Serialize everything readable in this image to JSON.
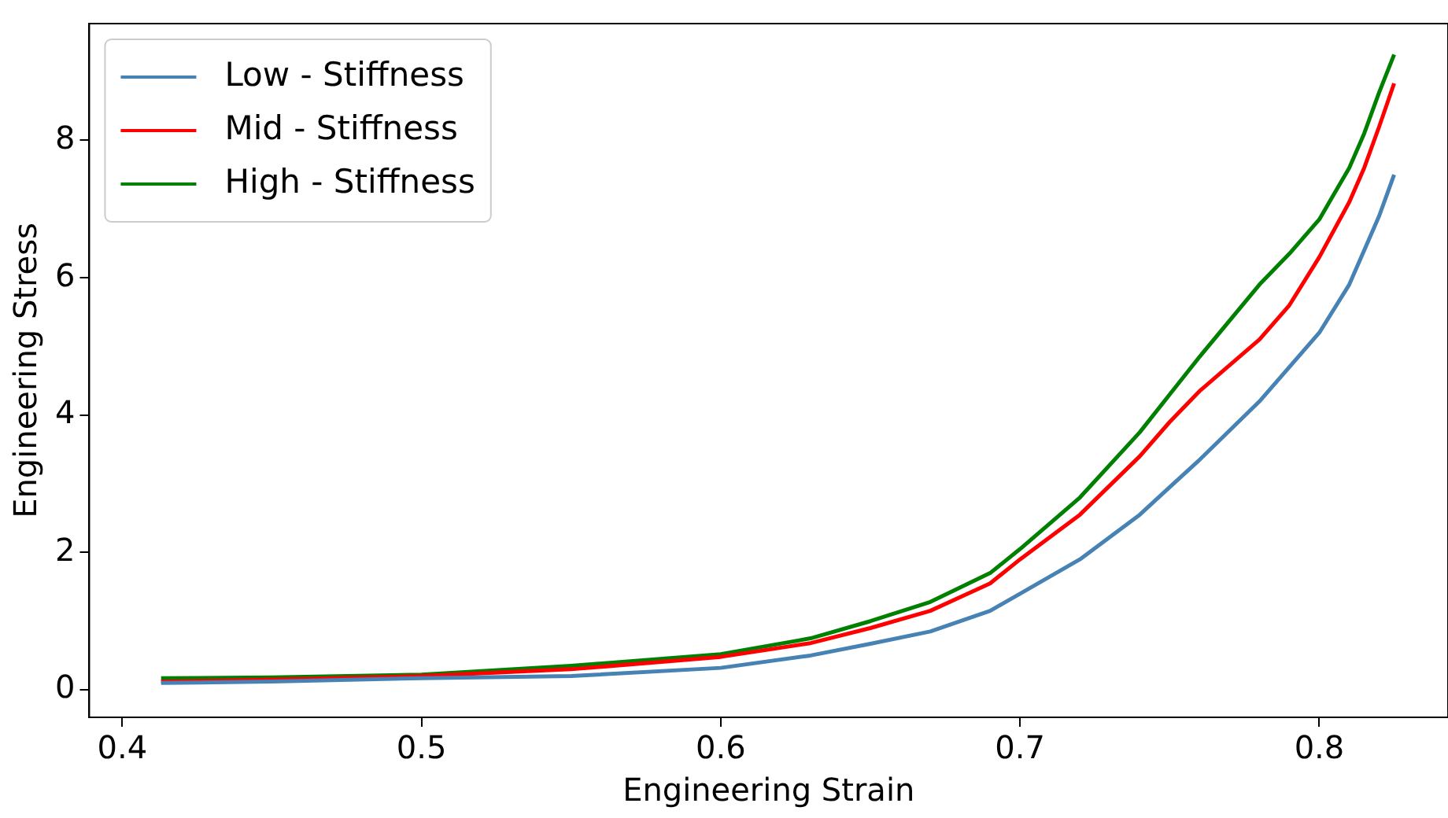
{
  "chart_data": {
    "type": "line",
    "xlabel": "Engineering Strain",
    "ylabel": "Engineering Stress",
    "xlim": [
      0.389,
      0.843
    ],
    "xticks": [
      0.4,
      0.5,
      0.6,
      0.7,
      0.8
    ],
    "ylim": [
      -0.4,
      9.7
    ],
    "yticks": [
      0,
      2,
      4,
      6,
      8
    ],
    "grid": false,
    "legend": "top left",
    "marker": "none",
    "line_style": "solid",
    "series": [
      {
        "name": "Low - Stiffness",
        "color": "#4682b4",
        "x": [
          0.413,
          0.45,
          0.5,
          0.55,
          0.6,
          0.63,
          0.65,
          0.67,
          0.69,
          0.7,
          0.72,
          0.74,
          0.75,
          0.76,
          0.78,
          0.79,
          0.8,
          0.81,
          0.815,
          0.82,
          0.825
        ],
        "values": [
          0.1,
          0.12,
          0.17,
          0.2,
          0.32,
          0.5,
          0.67,
          0.85,
          1.15,
          1.4,
          1.9,
          2.55,
          2.95,
          3.35,
          4.2,
          4.7,
          5.2,
          5.9,
          6.4,
          6.9,
          7.5
        ]
      },
      {
        "name": "Mid - Stiffness",
        "color": "#ff0000",
        "x": [
          0.413,
          0.45,
          0.5,
          0.55,
          0.6,
          0.63,
          0.65,
          0.67,
          0.69,
          0.7,
          0.72,
          0.74,
          0.75,
          0.76,
          0.78,
          0.79,
          0.8,
          0.81,
          0.815,
          0.82,
          0.825
        ],
        "values": [
          0.12,
          0.15,
          0.2,
          0.3,
          0.48,
          0.68,
          0.9,
          1.15,
          1.55,
          1.9,
          2.55,
          3.4,
          3.9,
          4.35,
          5.1,
          5.6,
          6.3,
          7.1,
          7.6,
          8.2,
          8.83
        ]
      },
      {
        "name": "High - Stiffness",
        "color": "#008000",
        "x": [
          0.413,
          0.45,
          0.5,
          0.55,
          0.6,
          0.63,
          0.65,
          0.67,
          0.69,
          0.7,
          0.72,
          0.74,
          0.75,
          0.76,
          0.78,
          0.79,
          0.8,
          0.81,
          0.815,
          0.82,
          0.825
        ],
        "values": [
          0.17,
          0.18,
          0.22,
          0.35,
          0.52,
          0.75,
          1.0,
          1.28,
          1.7,
          2.05,
          2.8,
          3.75,
          4.3,
          4.85,
          5.9,
          6.35,
          6.85,
          7.6,
          8.1,
          8.7,
          9.25
        ]
      }
    ]
  }
}
